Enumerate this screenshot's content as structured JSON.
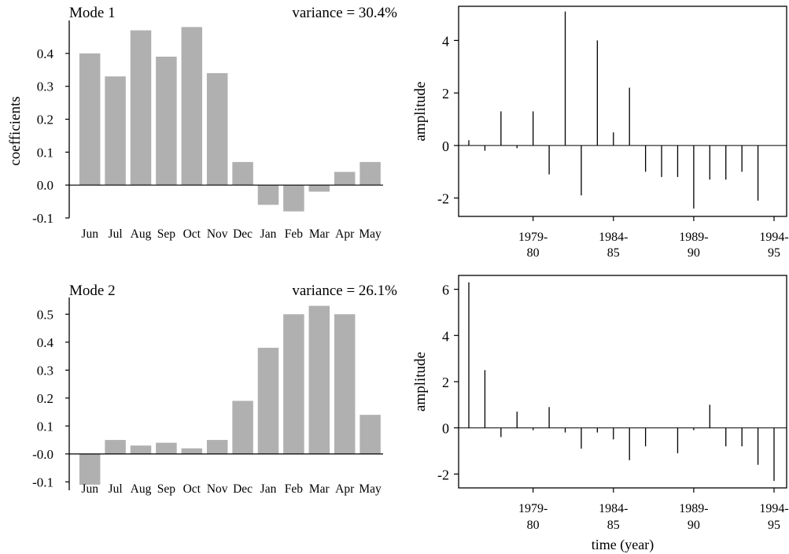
{
  "chart_data": [
    {
      "type": "bar",
      "panel_label": "Mode 1",
      "annotation": "variance = 30.4%",
      "ylabel": "coefficients",
      "xlabel": "",
      "categories": [
        "Jun",
        "Jul",
        "Aug",
        "Sep",
        "Oct",
        "Nov",
        "Dec",
        "Jan",
        "Feb",
        "Mar",
        "Apr",
        "May"
      ],
      "values": [
        0.4,
        0.33,
        0.47,
        0.39,
        0.48,
        0.34,
        0.07,
        -0.06,
        -0.08,
        -0.02,
        0.04,
        0.07
      ],
      "ylim": [
        -0.1,
        0.5
      ],
      "yticks": [
        -0.1,
        0.0,
        0.1,
        0.2,
        0.3,
        0.4
      ],
      "ytick_labels": [
        "-0.1",
        "0.0",
        "0.1",
        "0.2",
        "0.3",
        "0.4"
      ],
      "bar_color": "#b0b0b0"
    },
    {
      "type": "bar",
      "subtype": "stem",
      "panel_label": "",
      "ylabel": "amplitude",
      "xlabel": "",
      "x": [
        1,
        2,
        3,
        4,
        5,
        6,
        7,
        8,
        9,
        10,
        11,
        12,
        13,
        14,
        15,
        16,
        17,
        18,
        19,
        20
      ],
      "values": [
        0.2,
        -0.2,
        1.3,
        -0.1,
        1.3,
        -1.1,
        5.1,
        -1.9,
        4.0,
        0.5,
        2.2,
        -1.0,
        -1.2,
        -1.2,
        -2.4,
        -1.3,
        -1.3,
        -1.0,
        -2.1,
        0.0
      ],
      "ylim": [
        -2.7,
        5.3
      ],
      "yticks": [
        -2,
        0,
        2,
        4
      ],
      "ytick_labels": [
        "-2",
        "0",
        "2",
        "4"
      ],
      "xtick_positions": [
        5,
        10,
        15,
        20
      ],
      "xtick_labels": [
        [
          "1979-",
          "80"
        ],
        [
          "1984-",
          "85"
        ],
        [
          "1989-",
          "90"
        ],
        [
          "1994-",
          "95"
        ]
      ]
    },
    {
      "type": "bar",
      "panel_label": "Mode 2",
      "annotation": "variance = 26.1%",
      "ylabel": "",
      "xlabel": "",
      "categories": [
        "Jun",
        "Jul",
        "Aug",
        "Sep",
        "Oct",
        "Nov",
        "Dec",
        "Jan",
        "Feb",
        "Mar",
        "Apr",
        "May"
      ],
      "values": [
        -0.11,
        0.05,
        0.03,
        0.04,
        0.02,
        0.05,
        0.19,
        0.38,
        0.5,
        0.53,
        0.5,
        0.14
      ],
      "ylim": [
        -0.13,
        0.56
      ],
      "yticks": [
        -0.1,
        0.0,
        0.1,
        0.2,
        0.3,
        0.4,
        0.5
      ],
      "ytick_labels": [
        "-0.1",
        "-0.0",
        "0.1",
        "0.2",
        "0.3",
        "0.4",
        "0.5"
      ],
      "bar_color": "#b0b0b0"
    },
    {
      "type": "bar",
      "subtype": "stem",
      "panel_label": "",
      "ylabel": "amplitude",
      "xlabel": "time (year)",
      "x": [
        1,
        2,
        3,
        4,
        5,
        6,
        7,
        8,
        9,
        10,
        11,
        12,
        13,
        14,
        15,
        16,
        17,
        18,
        19,
        20
      ],
      "values": [
        6.3,
        2.5,
        -0.4,
        0.7,
        -0.1,
        0.9,
        -0.2,
        -0.9,
        -0.2,
        -0.5,
        -1.4,
        -0.8,
        0.0,
        -1.1,
        -0.1,
        1.0,
        -0.8,
        -0.8,
        -1.6,
        -2.3
      ],
      "ylim": [
        -2.6,
        6.6
      ],
      "yticks": [
        -2,
        0,
        2,
        4,
        6
      ],
      "ytick_labels": [
        "-2",
        "0",
        "2",
        "4",
        "6"
      ],
      "xtick_positions": [
        5,
        10,
        15,
        20
      ],
      "xtick_labels": [
        [
          "1979-",
          "80"
        ],
        [
          "1984-",
          "85"
        ],
        [
          "1989-",
          "90"
        ],
        [
          "1994-",
          "95"
        ]
      ]
    }
  ]
}
